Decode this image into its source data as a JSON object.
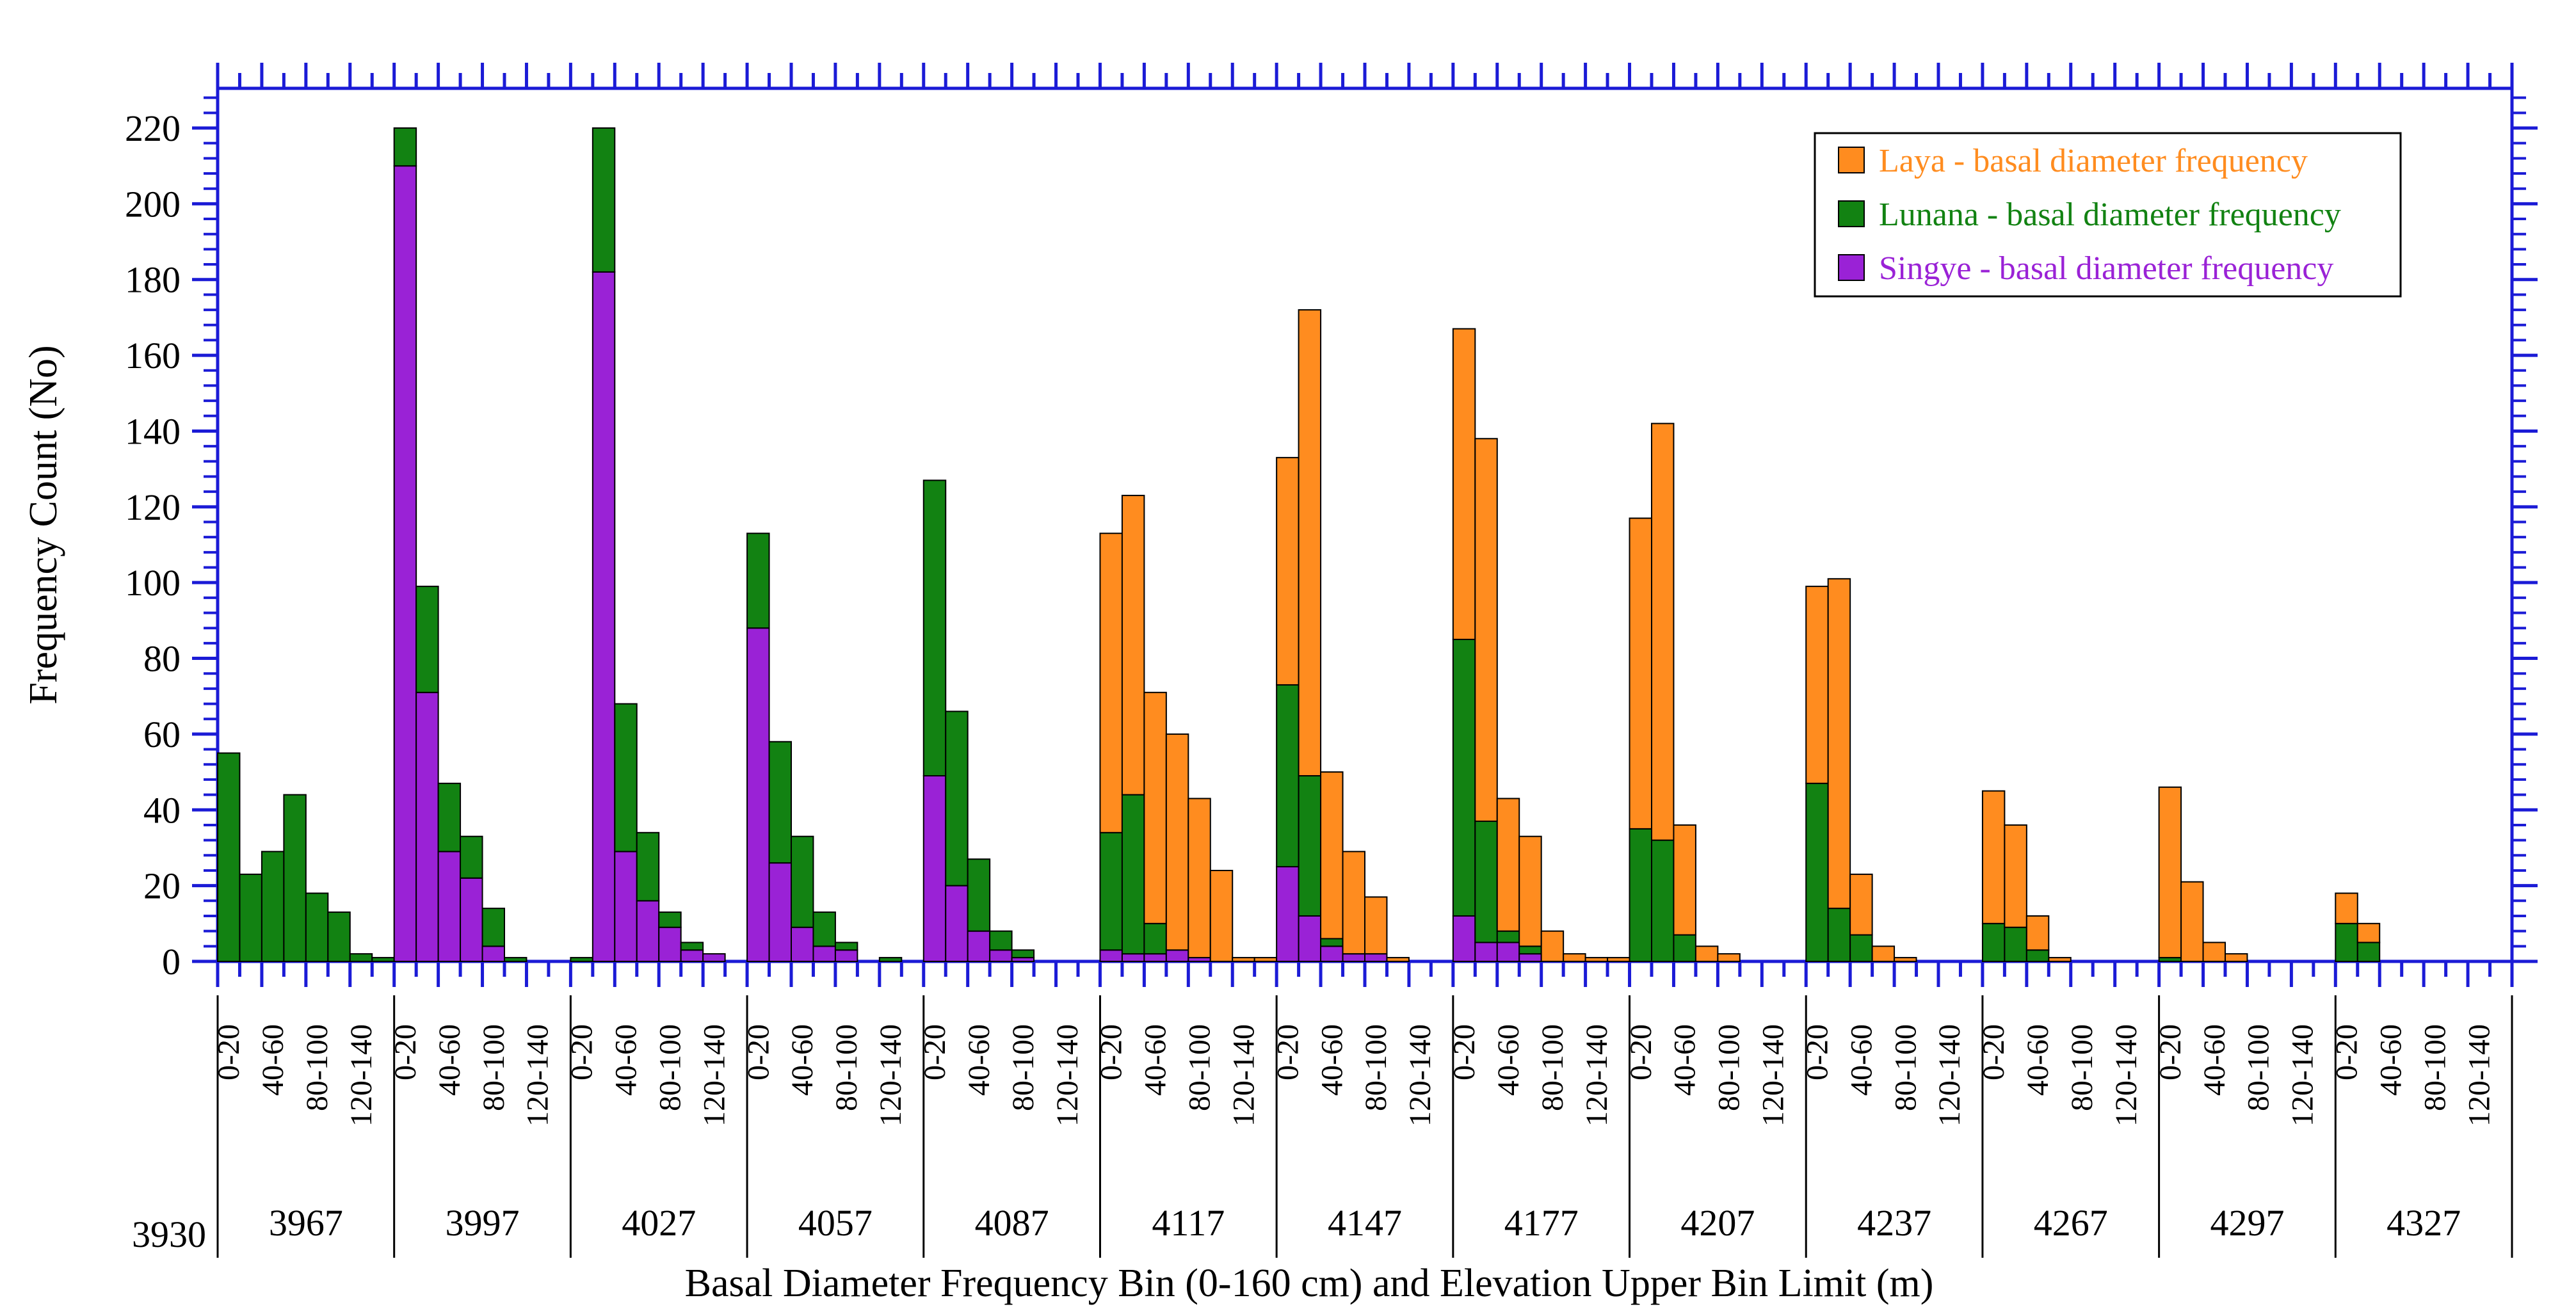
{
  "chart_data": {
    "type": "bar",
    "stacked": true,
    "title": "",
    "ylabel": "Frequency Count (No)",
    "xlabel": "Basal Diameter Frequency Bin (0-160 cm) and Elevation Upper Bin Limit (m)",
    "ylim": [
      0,
      230
    ],
    "y_ticks": [
      0,
      20,
      40,
      60,
      80,
      100,
      120,
      140,
      160,
      180,
      200,
      220
    ],
    "bin_labels": [
      "0-20",
      "40-60",
      "80-100",
      "120-140"
    ],
    "elevation_start": "3930",
    "elevations": [
      "3967",
      "3997",
      "4027",
      "4057",
      "4087",
      "4117",
      "4147",
      "4177",
      "4207",
      "4237",
      "4267",
      "4297",
      "4327"
    ],
    "legend_position": "top-right",
    "colors": {
      "Laya": "#ff8c1f",
      "Lunana": "#128212",
      "Singye": "#9a22d6",
      "axis": "#1b1bd6"
    },
    "series": [
      {
        "key": "Singye",
        "name": "Singye - basal diameter frequency",
        "values": [
          [
            0,
            0,
            0,
            0,
            0,
            0,
            0,
            0
          ],
          [
            210,
            71,
            29,
            22,
            4,
            0,
            0,
            0
          ],
          [
            0,
            182,
            29,
            16,
            9,
            3,
            2,
            0
          ],
          [
            88,
            26,
            9,
            4,
            3,
            0,
            0,
            0
          ],
          [
            49,
            20,
            8,
            3,
            1,
            0,
            0,
            0
          ],
          [
            3,
            2,
            2,
            3,
            1,
            0,
            0,
            0
          ],
          [
            25,
            12,
            4,
            2,
            2,
            0,
            0,
            0
          ],
          [
            12,
            5,
            5,
            2,
            0,
            0,
            0,
            0
          ],
          [
            0,
            0,
            0,
            0,
            0,
            0,
            0,
            0
          ],
          [
            0,
            0,
            0,
            0,
            0,
            0,
            0,
            0
          ],
          [
            0,
            0,
            0,
            0,
            0,
            0,
            0,
            0
          ],
          [
            0,
            0,
            0,
            0,
            0,
            0,
            0,
            0
          ],
          [
            0,
            0,
            0,
            0,
            0,
            0,
            0,
            0
          ]
        ]
      },
      {
        "key": "Lunana",
        "name": "Lunana -  basal diameter frequency",
        "values": [
          [
            55,
            23,
            29,
            44,
            18,
            13,
            2,
            1
          ],
          [
            10,
            28,
            18,
            11,
            10,
            1,
            0,
            0
          ],
          [
            1,
            38,
            39,
            18,
            4,
            2,
            0,
            0
          ],
          [
            25,
            32,
            24,
            9,
            2,
            0,
            1,
            0
          ],
          [
            78,
            46,
            19,
            5,
            2,
            0,
            0,
            0
          ],
          [
            31,
            42,
            8,
            0,
            0,
            0,
            0,
            0
          ],
          [
            48,
            37,
            2,
            0,
            0,
            0,
            0,
            0
          ],
          [
            73,
            32,
            3,
            2,
            0,
            0,
            0,
            0
          ],
          [
            35,
            32,
            7,
            0,
            0,
            0,
            0,
            0
          ],
          [
            47,
            14,
            7,
            0,
            0,
            0,
            0,
            0
          ],
          [
            10,
            9,
            3,
            0,
            0,
            0,
            0,
            0
          ],
          [
            1,
            0,
            0,
            0,
            0,
            0,
            0,
            0
          ],
          [
            10,
            5,
            0,
            0,
            0,
            0,
            0,
            0
          ]
        ]
      },
      {
        "key": "Laya",
        "name": "Laya - basal diameter frequency",
        "values": [
          [
            0,
            0,
            0,
            0,
            0,
            0,
            0,
            0
          ],
          [
            0,
            0,
            0,
            0,
            0,
            0,
            0,
            0
          ],
          [
            0,
            0,
            0,
            0,
            0,
            0,
            0,
            0
          ],
          [
            0,
            0,
            0,
            0,
            0,
            0,
            0,
            0
          ],
          [
            0,
            0,
            0,
            0,
            0,
            0,
            0,
            0
          ],
          [
            79,
            79,
            61,
            57,
            42,
            24,
            1,
            1
          ],
          [
            60,
            123,
            44,
            27,
            15,
            1,
            0,
            0
          ],
          [
            82,
            101,
            35,
            29,
            8,
            2,
            1,
            1
          ],
          [
            82,
            110,
            29,
            4,
            2,
            0,
            0,
            0
          ],
          [
            52,
            87,
            16,
            4,
            1,
            0,
            0,
            0
          ],
          [
            35,
            27,
            9,
            1,
            0,
            0,
            0,
            0
          ],
          [
            45,
            21,
            5,
            2,
            0,
            0,
            0,
            0
          ],
          [
            8,
            5,
            0,
            0,
            0,
            0,
            0,
            0
          ]
        ]
      }
    ]
  }
}
